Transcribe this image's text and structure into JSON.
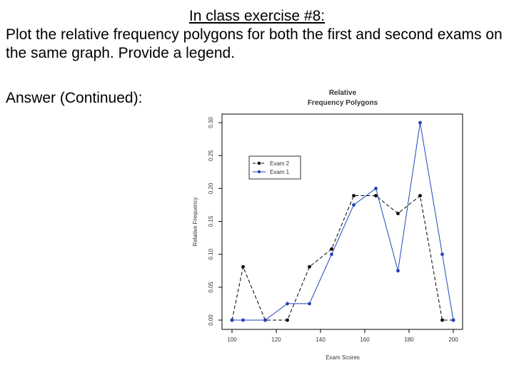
{
  "slide": {
    "title": "In class exercise #8:",
    "instructions": "Plot the relative frequency polygons for both the first and second exams on the same graph.  Provide a legend.",
    "answer_label": "Answer (Continued):"
  },
  "chart_data": {
    "type": "line",
    "title": "Relative\nFrequency Polygons",
    "xlabel": "Exam Scores",
    "ylabel": "Relative Frequency",
    "xlim": [
      100,
      200
    ],
    "ylim": [
      0,
      0.3
    ],
    "x_ticks": [
      "100",
      "120",
      "140",
      "160",
      "180",
      "200"
    ],
    "y_ticks": [
      "0.00",
      "0.05",
      "0.10",
      "0.15",
      "0.20",
      "0.25",
      "0.30"
    ],
    "x": [
      100,
      105,
      115,
      125,
      135,
      145,
      155,
      165,
      175,
      185,
      195,
      200
    ],
    "series": [
      {
        "name": "Exam 2",
        "color": "#000000",
        "dashed": true,
        "values": [
          0.0,
          0.081,
          0.0,
          0.0,
          0.081,
          0.108,
          0.189,
          0.189,
          0.162,
          0.189,
          0.0,
          0.0
        ]
      },
      {
        "name": "Exam 1",
        "color": "#2244bb",
        "dashed": false,
        "values": [
          0.0,
          0.0,
          0.0,
          0.025,
          0.025,
          0.1,
          0.175,
          0.2,
          0.075,
          0.3,
          0.1,
          0.0
        ]
      }
    ],
    "grid": false,
    "legend_position": "top-left"
  }
}
